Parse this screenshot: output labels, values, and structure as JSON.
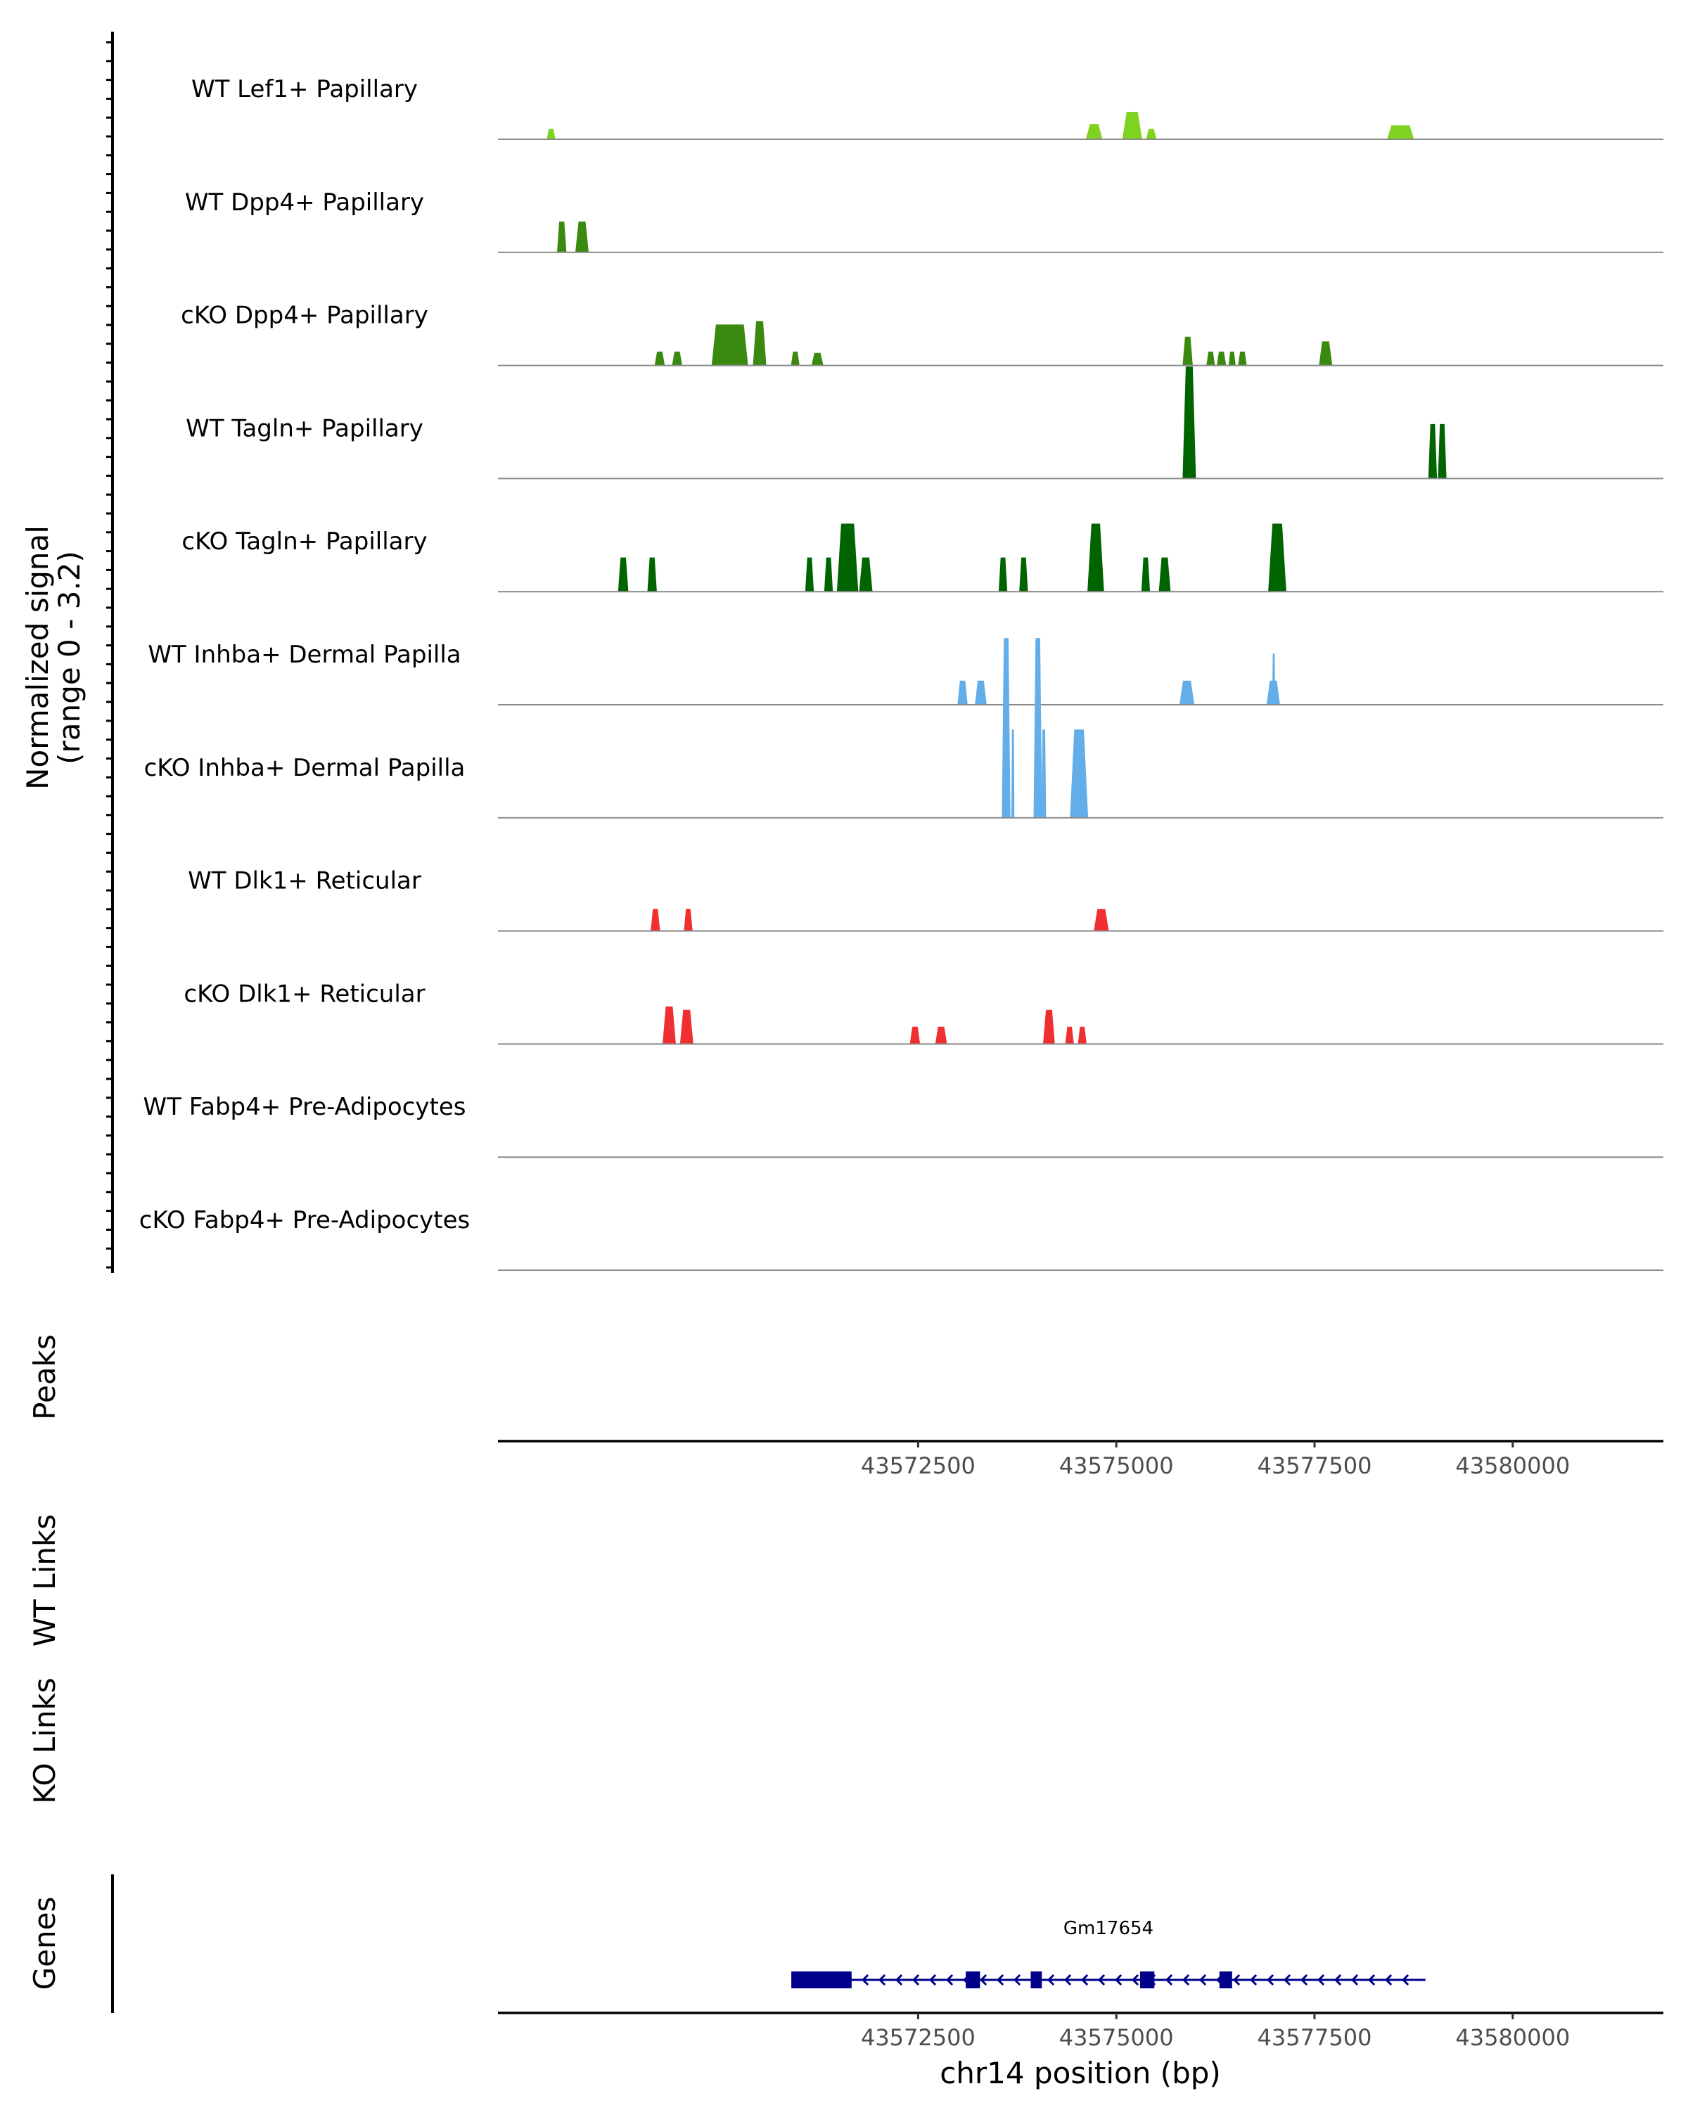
{
  "chart_data": {
    "type": "area",
    "chromosome": "chr14",
    "xlabel": "chr14 position (bp)",
    "xlim": [
      43567200,
      43581900
    ],
    "x_ticks": [
      43572500,
      43575000,
      43577500,
      43580000
    ],
    "x_tick_labels": [
      "43572500",
      "43575000",
      "43577500",
      "43580000"
    ],
    "ylabel": "Normalized signal\n(range 0 - 3.2)",
    "ylim": [
      0,
      3.2
    ],
    "colors": {
      "Lef1": "#7fd320",
      "Dpp4": "#3a8a10",
      "Tagln": "#006400",
      "Inhba": "#63aee8",
      "Dlk1": "#f03030",
      "gene": "#00008b"
    },
    "tracks": [
      {
        "name": "WT Lef1+ Papillary",
        "color_key": "Lef1",
        "peaks": [
          {
            "start": 43567820,
            "end": 43567920,
            "height": 0.15
          },
          {
            "start": 43574620,
            "end": 43574820,
            "height": 0.22
          },
          {
            "start": 43575080,
            "end": 43575320,
            "height": 0.4
          },
          {
            "start": 43575380,
            "end": 43575500,
            "height": 0.15
          },
          {
            "start": 43578420,
            "end": 43578750,
            "height": 0.2
          }
        ]
      },
      {
        "name": "WT Dpp4+ Papillary",
        "color_key": "Dpp4",
        "peaks": [
          {
            "start": 43567950,
            "end": 43568060,
            "height": 0.45
          },
          {
            "start": 43568180,
            "end": 43568340,
            "height": 0.45
          }
        ]
      },
      {
        "name": "cKO Dpp4+ Papillary",
        "color_key": "Dpp4",
        "peaks": [
          {
            "start": 43569180,
            "end": 43569300,
            "height": 0.2
          },
          {
            "start": 43569400,
            "end": 43569520,
            "height": 0.2
          },
          {
            "start": 43569900,
            "end": 43570350,
            "height": 0.6
          },
          {
            "start": 43570420,
            "end": 43570580,
            "height": 0.65
          },
          {
            "start": 43570900,
            "end": 43571000,
            "height": 0.2
          },
          {
            "start": 43571160,
            "end": 43571300,
            "height": 0.18
          },
          {
            "start": 43575840,
            "end": 43575960,
            "height": 0.42
          },
          {
            "start": 43576140,
            "end": 43576240,
            "height": 0.2
          },
          {
            "start": 43576270,
            "end": 43576380,
            "height": 0.2
          },
          {
            "start": 43576420,
            "end": 43576500,
            "height": 0.2
          },
          {
            "start": 43576540,
            "end": 43576640,
            "height": 0.2
          },
          {
            "start": 43577560,
            "end": 43577720,
            "height": 0.35
          }
        ]
      },
      {
        "name": "WT Tagln+ Papillary",
        "color_key": "Tagln",
        "peaks": [
          {
            "start": 43575840,
            "end": 43576000,
            "height": 1.65
          },
          {
            "start": 43578940,
            "end": 43579040,
            "height": 0.8
          },
          {
            "start": 43579060,
            "end": 43579160,
            "height": 0.8
          }
        ]
      },
      {
        "name": "cKO Tagln+ Papillary",
        "color_key": "Tagln",
        "peaks": [
          {
            "start": 43568720,
            "end": 43568840,
            "height": 0.5
          },
          {
            "start": 43569090,
            "end": 43569200,
            "height": 0.5
          },
          {
            "start": 43571080,
            "end": 43571180,
            "height": 0.5
          },
          {
            "start": 43571320,
            "end": 43571420,
            "height": 0.5
          },
          {
            "start": 43571480,
            "end": 43571740,
            "height": 1.0
          },
          {
            "start": 43571760,
            "end": 43571920,
            "height": 0.5
          },
          {
            "start": 43573520,
            "end": 43573620,
            "height": 0.5
          },
          {
            "start": 43573780,
            "end": 43573880,
            "height": 0.5
          },
          {
            "start": 43574640,
            "end": 43574840,
            "height": 1.0
          },
          {
            "start": 43575320,
            "end": 43575420,
            "height": 0.5
          },
          {
            "start": 43575540,
            "end": 43575680,
            "height": 0.5
          },
          {
            "start": 43576920,
            "end": 43577140,
            "height": 1.0
          }
        ]
      },
      {
        "name": "WT Inhba+ Dermal Papilla",
        "color_key": "Inhba",
        "peaks": [
          {
            "start": 43573000,
            "end": 43573120,
            "height": 0.35
          },
          {
            "start": 43573220,
            "end": 43573360,
            "height": 0.35
          },
          {
            "start": 43575800,
            "end": 43575980,
            "height": 0.35
          },
          {
            "start": 43576900,
            "end": 43577060,
            "height": 0.35
          },
          {
            "start": 43576970,
            "end": 43577000,
            "height": 0.75
          }
        ]
      },
      {
        "name": "cKO Inhba+ Dermal Papilla",
        "color_key": "Inhba",
        "peaks": [
          {
            "start": 43573560,
            "end": 43573660,
            "height": 2.65
          },
          {
            "start": 43573680,
            "end": 43573710,
            "height": 1.3
          },
          {
            "start": 43573960,
            "end": 43574060,
            "height": 2.65
          },
          {
            "start": 43574060,
            "end": 43574110,
            "height": 1.3
          },
          {
            "start": 43574420,
            "end": 43574640,
            "height": 1.3
          }
        ]
      },
      {
        "name": "WT Dlk1+ Reticular",
        "color_key": "Dlk1",
        "peaks": [
          {
            "start": 43569130,
            "end": 43569240,
            "height": 0.32
          },
          {
            "start": 43569550,
            "end": 43569650,
            "height": 0.32
          },
          {
            "start": 43574720,
            "end": 43574900,
            "height": 0.32
          }
        ]
      },
      {
        "name": "cKO Dlk1+ Reticular",
        "color_key": "Dlk1",
        "peaks": [
          {
            "start": 43569280,
            "end": 43569440,
            "height": 0.55
          },
          {
            "start": 43569500,
            "end": 43569660,
            "height": 0.5
          },
          {
            "start": 43572400,
            "end": 43572520,
            "height": 0.25
          },
          {
            "start": 43572720,
            "end": 43572860,
            "height": 0.25
          },
          {
            "start": 43574080,
            "end": 43574220,
            "height": 0.5
          },
          {
            "start": 43574360,
            "end": 43574460,
            "height": 0.25
          },
          {
            "start": 43574520,
            "end": 43574620,
            "height": 0.25
          }
        ]
      },
      {
        "name": "WT Fabp4+ Pre-Adipocytes",
        "color_key": "Fabp4",
        "peaks": []
      },
      {
        "name": "cKO Fabp4+ Pre-Adipocytes",
        "color_key": "Fabp4",
        "peaks": []
      }
    ],
    "panels": {
      "peaks_label": "Peaks",
      "wt_links_label": "WT Links",
      "ko_links_label": "KO Links",
      "genes_label": "Genes"
    },
    "gene": {
      "name": "Gm17654",
      "strand": "-",
      "start": 43570900,
      "end": 43578900,
      "exons": [
        {
          "start": 43570900,
          "end": 43571660
        },
        {
          "start": 43573100,
          "end": 43573280
        },
        {
          "start": 43573920,
          "end": 43574060
        },
        {
          "start": 43575300,
          "end": 43575480
        },
        {
          "start": 43576300,
          "end": 43576460
        }
      ]
    }
  }
}
